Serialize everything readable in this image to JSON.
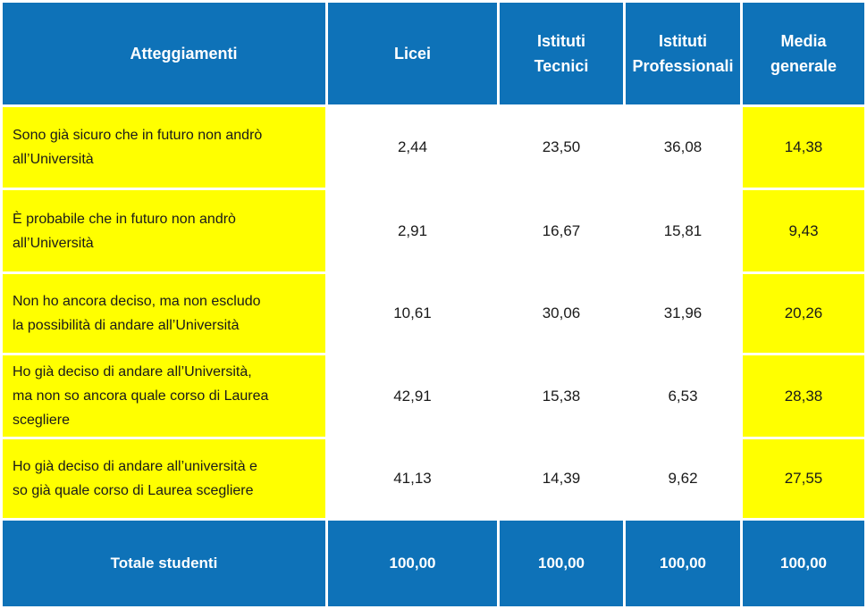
{
  "colors": {
    "blue": "#0E72B8",
    "yellow": "#FFFF00",
    "text_dark": "#1A1A1A",
    "text_light": "#FFFFFF"
  },
  "table": {
    "header": {
      "attitudes": "Atteggiamenti",
      "licei": "Licei",
      "tecnici": "Istituti\nTecnici",
      "professionali": "Istituti\nProfessionali",
      "media": "Media\ngenerale"
    },
    "rows": [
      {
        "label": "Sono già sicuro che in futuro non andrò\nall’Università",
        "licei": "2,44",
        "tecnici": "23,50",
        "professionali": "36,08",
        "media": "14,38"
      },
      {
        "label": "È probabile che in futuro non andrò\nall’Università",
        "licei": "2,91",
        "tecnici": "16,67",
        "professionali": "15,81",
        "media": "9,43"
      },
      {
        "label": "Non ho ancora deciso, ma non escludo\nla possibilità di andare all’Università",
        "licei": "10,61",
        "tecnici": "30,06",
        "professionali": "31,96",
        "media": "20,26"
      },
      {
        "label": "Ho già deciso di andare all’Università,\nma non so ancora quale corso di Laurea\nscegliere",
        "licei": "42,91",
        "tecnici": "15,38",
        "professionali": "6,53",
        "media": "28,38"
      },
      {
        "label": "Ho già deciso di andare all’università e\nso già quale corso di Laurea scegliere",
        "licei": "41,13",
        "tecnici": "14,39",
        "professionali": "9,62",
        "media": "27,55"
      }
    ],
    "footer": {
      "label": "Totale studenti",
      "licei": "100,00",
      "tecnici": "100,00",
      "professionali": "100,00",
      "media": "100,00"
    }
  },
  "chart_data": {
    "type": "table",
    "columns": [
      "Atteggiamenti",
      "Licei",
      "Istituti Tecnici",
      "Istituti Professionali",
      "Media generale"
    ],
    "rows": [
      [
        "Sono già sicuro che in futuro non andrò all’Università",
        2.44,
        23.5,
        36.08,
        14.38
      ],
      [
        "È probabile che in futuro non andrò all’Università",
        2.91,
        16.67,
        15.81,
        9.43
      ],
      [
        "Non ho ancora deciso, ma non escludo la possibilità di andare all’Università",
        10.61,
        30.06,
        31.96,
        20.26
      ],
      [
        "Ho già deciso di andare all’Università, ma non so ancora quale corso di Laurea scegliere",
        42.91,
        15.38,
        6.53,
        28.38
      ],
      [
        "Ho già deciso di andare all’università e so già quale corso di Laurea scegliere",
        41.13,
        14.39,
        9.62,
        27.55
      ]
    ],
    "footer_row": [
      "Totale studenti",
      100.0,
      100.0,
      100.0,
      100.0
    ],
    "value_format": "decimal-comma",
    "unit": "percent",
    "highlight_columns": [
      "Atteggiamenti",
      "Media generale"
    ]
  }
}
